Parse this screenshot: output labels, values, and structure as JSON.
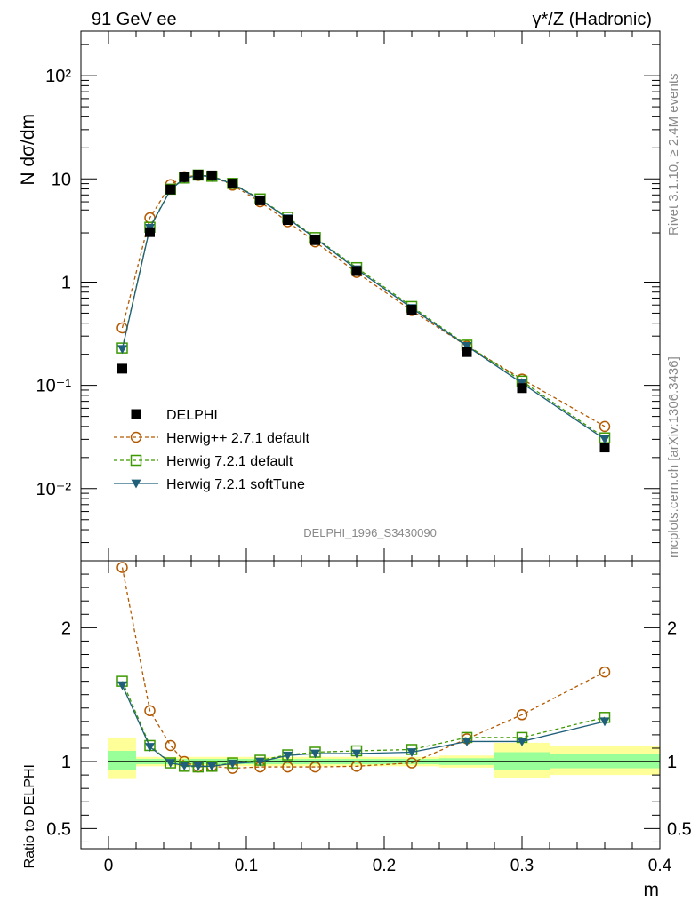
{
  "header": {
    "left": "91 GeV ee",
    "right": "γ*/Z (Hadronic)"
  },
  "side_text": {
    "rivet": "Rivet 3.1.10, ≥ 2.4M events",
    "mcplots": "mcplots.cern.ch [arXiv:1306.3436]"
  },
  "watermark": "DELPHI_1996_S3430090",
  "chart_data": [
    {
      "type": "scatter",
      "panel": "main",
      "ylabel": "N dσ/dm",
      "yscale": "log",
      "ylim": [
        0.002,
        270
      ],
      "xlim": [
        -0.02,
        0.4
      ],
      "yticks": [
        {
          "value": 0.01,
          "label": "10⁻²"
        },
        {
          "value": 0.1,
          "label": "10⁻¹"
        },
        {
          "value": 1,
          "label": "1"
        },
        {
          "value": 10,
          "label": "10"
        },
        {
          "value": 100,
          "label": "10²"
        }
      ],
      "legend_position": "lower-left",
      "x": [
        0.01,
        0.03,
        0.045,
        0.055,
        0.065,
        0.075,
        0.09,
        0.11,
        0.13,
        0.15,
        0.18,
        0.22,
        0.26,
        0.3,
        0.36
      ],
      "series": [
        {
          "name": "DELPHI",
          "color": "#000000",
          "marker": "filled-square",
          "line": "none",
          "values": [
            0.145,
            3.05,
            7.9,
            10.4,
            11.0,
            10.8,
            9.0,
            6.2,
            4.0,
            2.55,
            1.28,
            0.54,
            0.21,
            0.094,
            0.025
          ]
        },
        {
          "name": "Herwig++ 2.7.1 default",
          "color": "#b35900",
          "marker": "open-circle",
          "line": "dashed",
          "values": [
            0.36,
            4.2,
            8.8,
            10.5,
            10.8,
            10.6,
            8.7,
            6.0,
            3.85,
            2.45,
            1.24,
            0.53,
            0.24,
            0.115,
            0.04
          ]
        },
        {
          "name": "Herwig 7.2.1 default",
          "color": "#3d9900",
          "marker": "open-square",
          "line": "dashed",
          "values": [
            0.23,
            3.4,
            7.95,
            10.2,
            10.9,
            10.6,
            9.05,
            6.4,
            4.25,
            2.7,
            1.38,
            0.58,
            0.245,
            0.11,
            0.031
          ]
        },
        {
          "name": "Herwig 7.2.1 softTune",
          "color": "#1f5f7a",
          "marker": "filled-triangle-down",
          "line": "solid",
          "values": [
            0.225,
            3.35,
            7.85,
            10.1,
            10.8,
            10.5,
            8.95,
            6.3,
            4.15,
            2.65,
            1.33,
            0.56,
            0.24,
            0.105,
            0.03
          ]
        }
      ]
    },
    {
      "type": "line",
      "panel": "ratio",
      "ylabel": "Ratio to DELPHI",
      "xlabel": "m",
      "ylim": [
        0.35,
        2.5
      ],
      "xlim": [
        -0.02,
        0.4
      ],
      "xticks": [
        {
          "value": 0,
          "label": "0"
        },
        {
          "value": 0.1,
          "label": "0.1"
        },
        {
          "value": 0.2,
          "label": "0.2"
        },
        {
          "value": 0.3,
          "label": "0.3"
        },
        {
          "value": 0.4,
          "label": "0.4"
        }
      ],
      "yticks": [
        {
          "value": 0.5,
          "label": "0.5"
        },
        {
          "value": 1,
          "label": "1"
        },
        {
          "value": 2,
          "label": "2"
        }
      ],
      "x": [
        0.01,
        0.03,
        0.045,
        0.055,
        0.065,
        0.075,
        0.09,
        0.11,
        0.13,
        0.15,
        0.18,
        0.22,
        0.26,
        0.3,
        0.36
      ],
      "series": [
        {
          "name": "Herwig++ 2.7.1 default",
          "color": "#b35900",
          "marker": "open-circle",
          "line": "dashed",
          "values": [
            2.45,
            1.38,
            1.12,
            1.0,
            0.96,
            0.965,
            0.95,
            0.96,
            0.96,
            0.96,
            0.965,
            0.99,
            1.17,
            1.35,
            1.67
          ]
        },
        {
          "name": "Herwig 7.2.1 default",
          "color": "#3d9900",
          "marker": "open-square",
          "line": "dashed",
          "values": [
            1.6,
            1.12,
            0.99,
            0.965,
            0.96,
            0.965,
            0.99,
            1.01,
            1.05,
            1.07,
            1.08,
            1.09,
            1.18,
            1.18,
            1.33
          ]
        },
        {
          "name": "Herwig 7.2.1 softTune",
          "color": "#1f5f7a",
          "marker": "filled-triangle-down",
          "line": "solid",
          "values": [
            1.57,
            1.11,
            0.99,
            0.97,
            0.965,
            0.965,
            0.985,
            1.0,
            1.045,
            1.06,
            1.06,
            1.07,
            1.15,
            1.15,
            1.3
          ]
        }
      ],
      "bands": [
        {
          "x0": 0.0,
          "x1": 0.02,
          "yellow": [
            0.87,
            1.18
          ],
          "green": [
            0.94,
            1.08
          ]
        },
        {
          "x0": 0.02,
          "x1": 0.24,
          "yellow": [
            0.965,
            1.035
          ],
          "green": [
            0.98,
            1.02
          ]
        },
        {
          "x0": 0.24,
          "x1": 0.28,
          "yellow": [
            0.955,
            1.045
          ],
          "green": [
            0.975,
            1.025
          ]
        },
        {
          "x0": 0.28,
          "x1": 0.32,
          "yellow": [
            0.88,
            1.14
          ],
          "green": [
            0.94,
            1.07
          ]
        },
        {
          "x0": 0.32,
          "x1": 0.4,
          "yellow": [
            0.9,
            1.12
          ],
          "green": [
            0.95,
            1.06
          ]
        }
      ]
    }
  ]
}
